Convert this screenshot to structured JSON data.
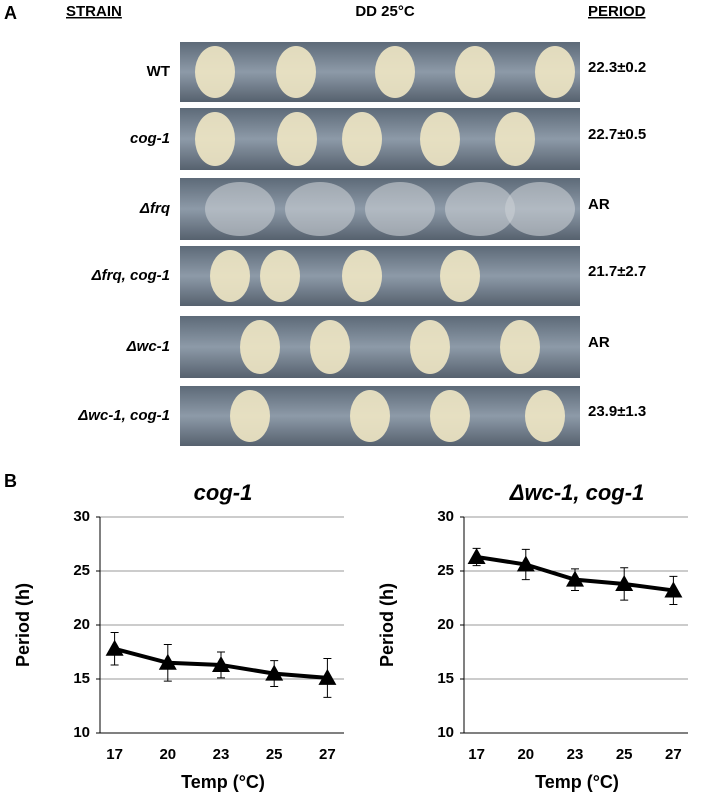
{
  "panel_a": {
    "label": "A",
    "strain_header": "STRAIN",
    "condition_header": "DD 25°C",
    "period_header": "PERIOD",
    "strains": [
      "WT",
      "cog-1",
      "Δfrq",
      "Δfrq, cog-1",
      "Δwc-1",
      "Δwc-1, cog-1"
    ],
    "periods": [
      "22.3±0.2",
      "22.7±0.5",
      "AR",
      "21.7±2.7",
      "AR",
      "23.9±1.3"
    ]
  },
  "panel_b_label": "B",
  "chart_data": [
    {
      "type": "line",
      "title": "cog-1",
      "x_label": "Temp (°C)",
      "y_label": "Period (h)",
      "categories": [
        "17",
        "20",
        "23",
        "25",
        "27"
      ],
      "values": [
        17.8,
        16.5,
        16.3,
        15.5,
        15.1
      ],
      "errors": [
        1.5,
        1.7,
        1.2,
        1.2,
        1.8
      ],
      "color": "#000000",
      "ylim": [
        10,
        30
      ],
      "yticks": [
        10,
        15,
        20,
        25,
        30
      ],
      "grid": true
    },
    {
      "type": "line",
      "title": "Δwc-1, cog-1",
      "x_label": "Temp (°C)",
      "y_label": "Period (h)",
      "categories": [
        "17",
        "20",
        "23",
        "25",
        "27"
      ],
      "values": [
        26.3,
        25.6,
        24.2,
        23.8,
        23.2
      ],
      "errors": [
        0.8,
        1.4,
        1.0,
        1.5,
        1.3
      ],
      "color": "#000000",
      "ylim": [
        10,
        30
      ],
      "yticks": [
        10,
        15,
        20,
        25,
        30
      ],
      "grid": true
    }
  ]
}
